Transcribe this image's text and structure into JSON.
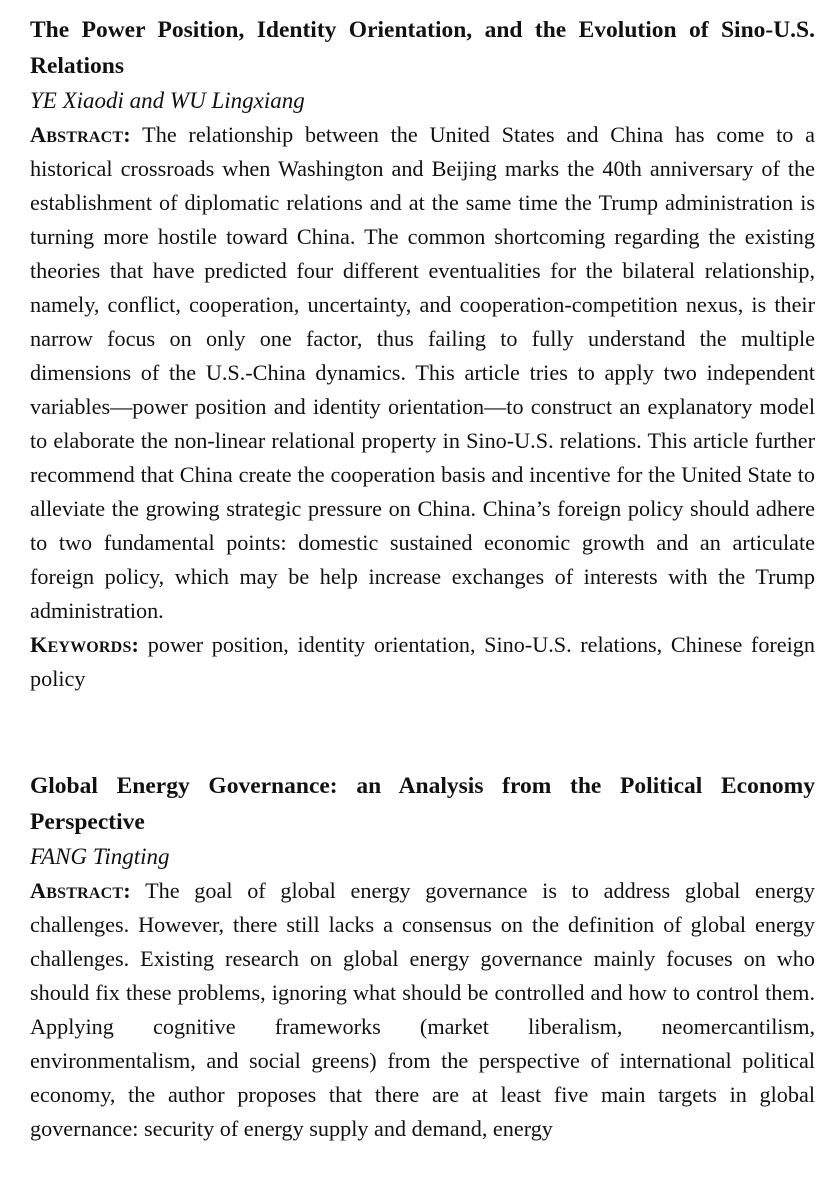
{
  "articles": [
    {
      "title": "The Power Position, Identity Orientation, and the Evolution of Sino-U.S. Relations",
      "authors": "YE Xiaodi and WU Lingxiang",
      "abstract_label": "Abstract:",
      "abstract": "The relationship between the United States and China has come to a historical crossroads when Washington and Beijing marks the 40th anniversary of the establishment of diplomatic relations and at the same time the Trump administration is turning more hostile toward China. The common shortcoming regarding the existing theories that have predicted four different eventualities for the bilateral relationship, namely, conflict, cooperation, uncertainty, and cooperation-competition nexus, is their narrow focus on only one factor, thus failing to fully understand the multiple dimensions of the U.S.-China dynamics. This article tries to apply two independent variables—power position and identity orientation—to construct an explanatory model to elaborate the non-linear relational property in Sino-U.S. relations. This article further recommend that China create the cooperation basis and incentive for the United State to alleviate the growing strategic pressure on China. China’s foreign policy should adhere to two fundamental points: domestic sustained economic growth and an articulate foreign policy, which may be help increase exchanges of interests with the Trump administration.",
      "keywords_label": "Keywords:",
      "keywords": "power position, identity orientation, Sino-U.S. relations, Chinese foreign policy"
    },
    {
      "title": "Global Energy Governance: an Analysis from the Political Economy Perspective",
      "authors": "FANG Tingting",
      "abstract_label": "Abstract:",
      "abstract": "The goal of global energy governance is to address global energy challenges. However, there still lacks a consensus on the definition of global energy challenges. Existing research on global energy governance mainly focuses on who should fix these problems, ignoring what should be controlled and how to control them. Applying cognitive frameworks (market liberalism, neomercantilism, environmentalism, and social greens) from the perspective of international political economy, the author proposes that there are at least five main targets in global governance: security of energy supply and demand, energy"
    }
  ]
}
